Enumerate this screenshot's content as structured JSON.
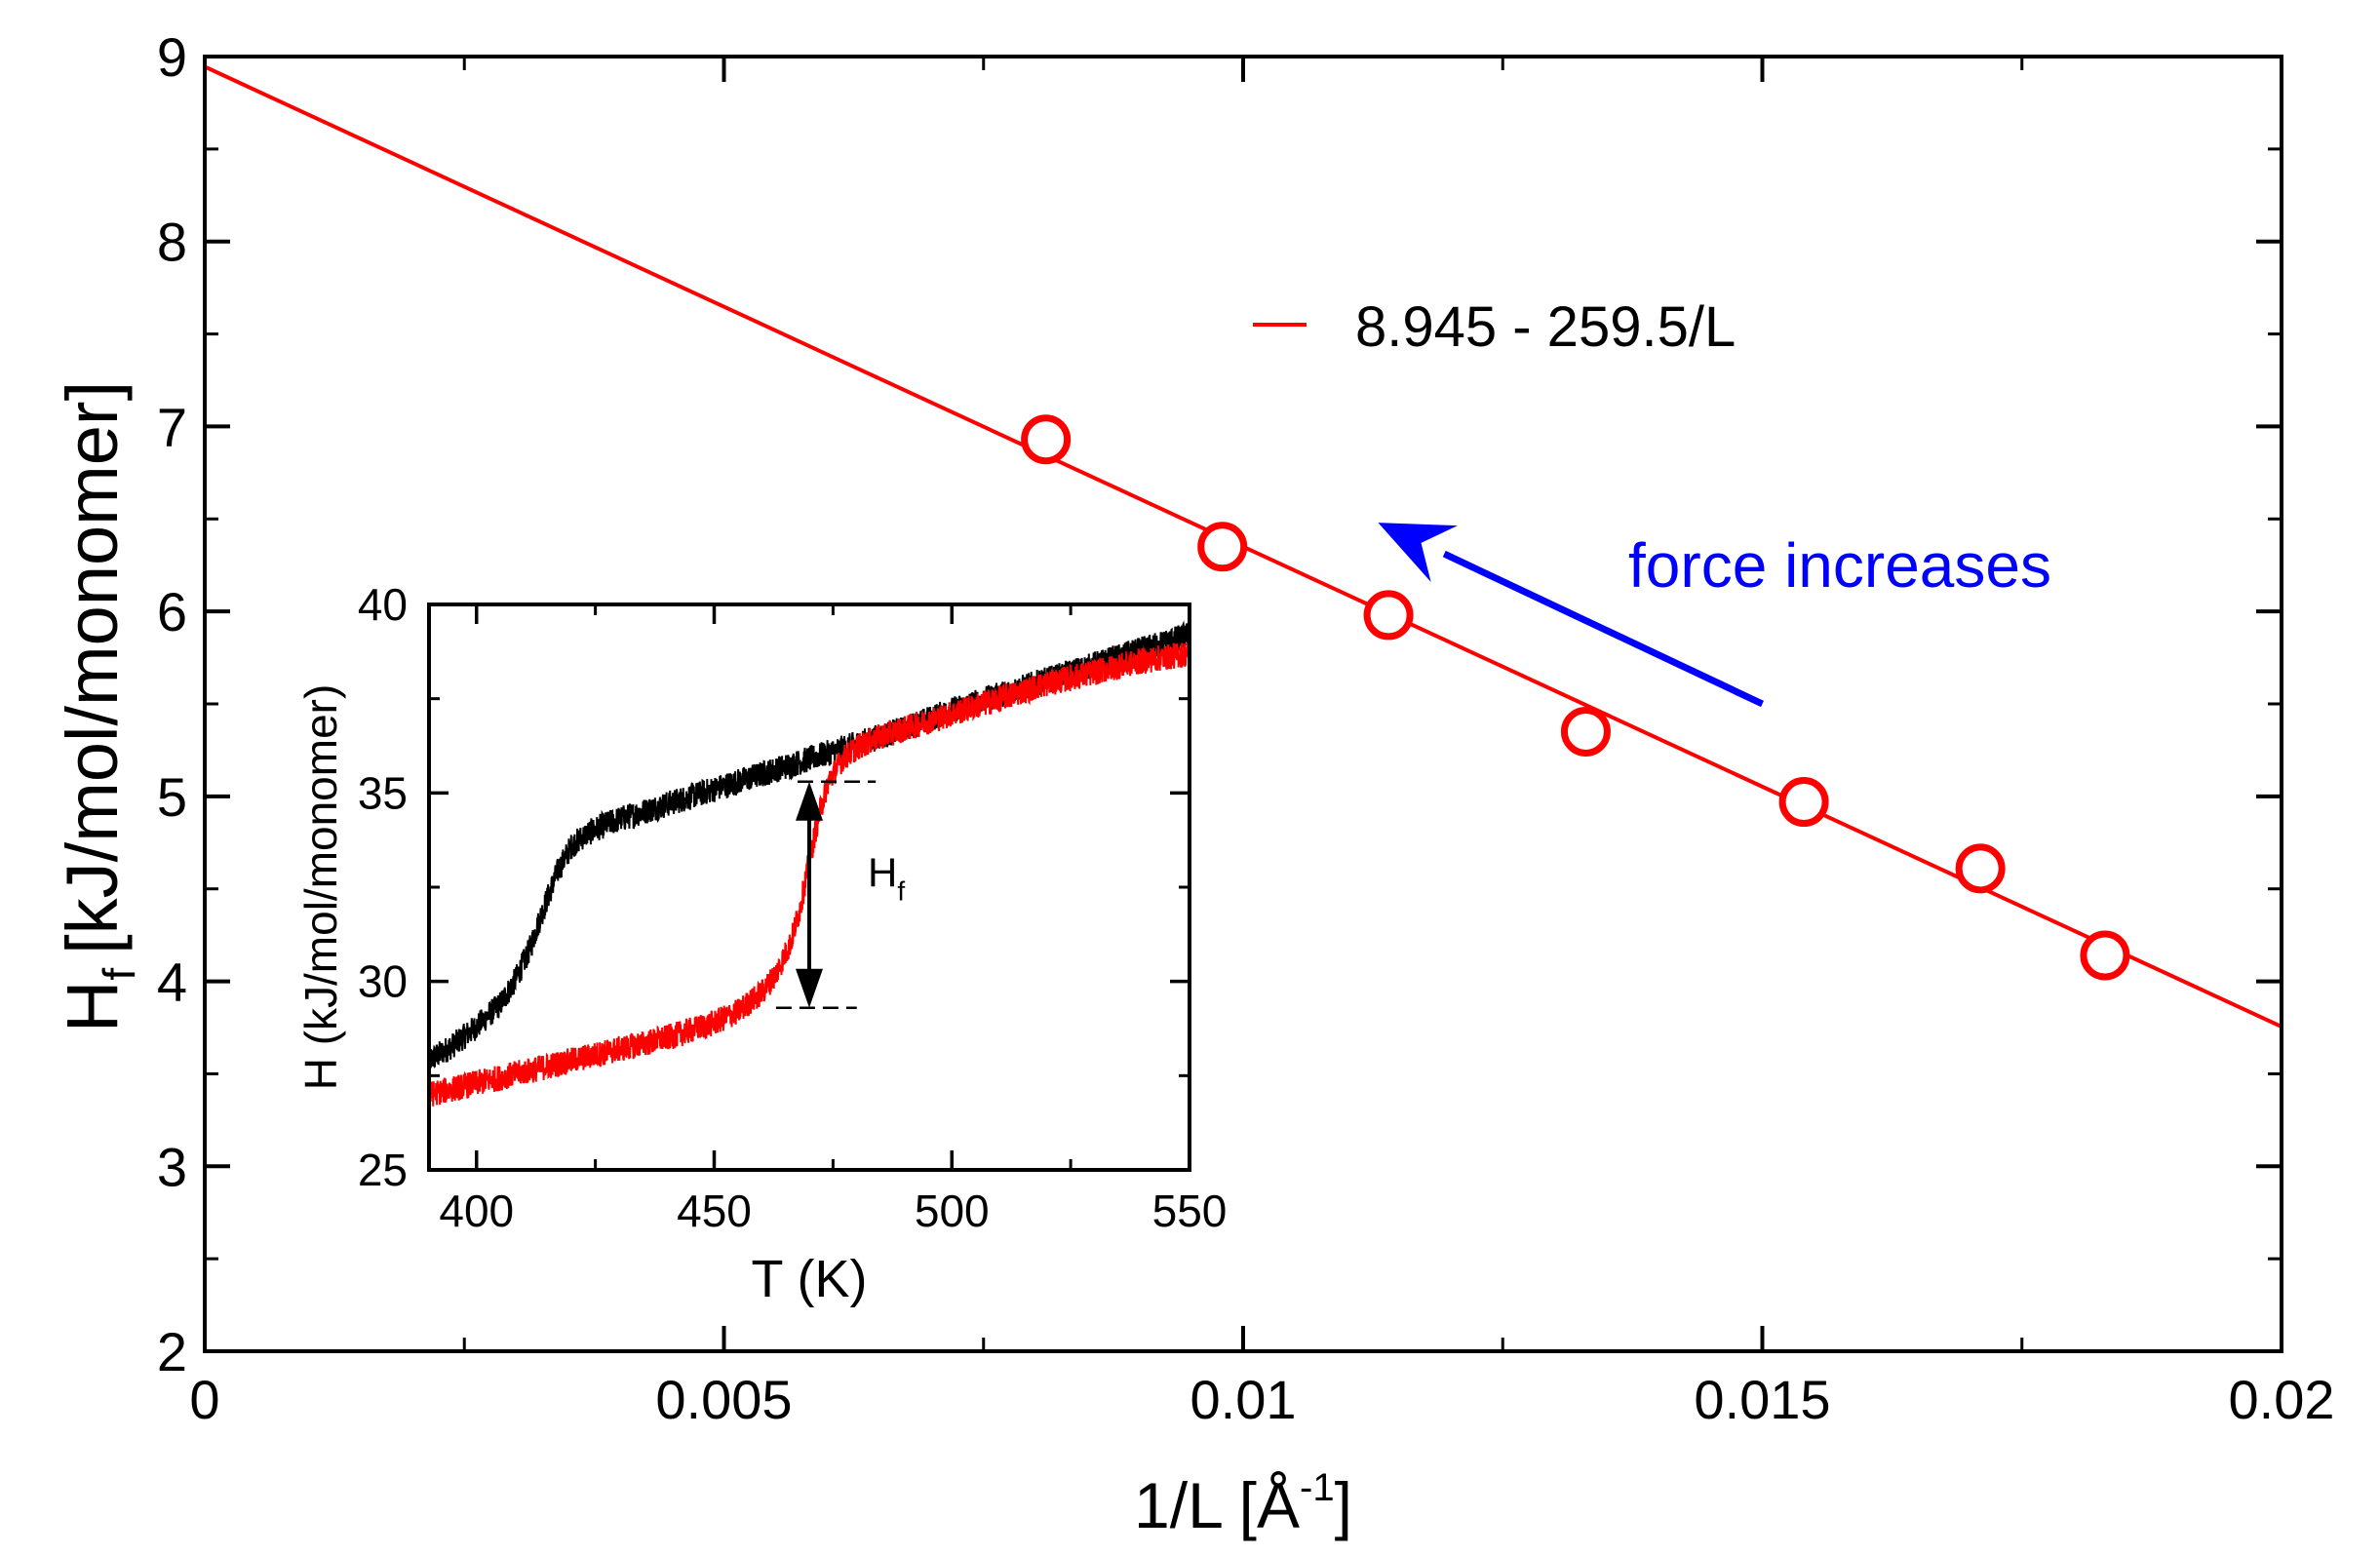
{
  "chart_data": [
    {
      "type": "scatter",
      "xlabel": "1/L [Å",
      "xlabel_sup": "-1",
      "xlabel_end": "]",
      "ylabel_main": "H",
      "ylabel_sub": "f",
      "ylabel_rest": "[kJ/mol/monomer]",
      "xlim": [
        0,
        0.02
      ],
      "ylim": [
        2,
        9
      ],
      "x_ticks": [
        0,
        0.005,
        0.01,
        0.015,
        0.02
      ],
      "x_tick_labels": [
        "0",
        "0.005",
        "0.01",
        "0.015",
        "0.02"
      ],
      "y_ticks": [
        2,
        3,
        4,
        5,
        6,
        7,
        8,
        9
      ],
      "y_tick_labels": [
        "2",
        "3",
        "4",
        "5",
        "6",
        "7",
        "8",
        "9"
      ],
      "series": [
        {
          "kind": "markers",
          "color": "#ff0000",
          "x": [
            0.0081,
            0.0098,
            0.0114,
            0.0133,
            0.0154,
            0.0171,
            0.0183
          ],
          "y": [
            6.93,
            6.35,
            5.98,
            5.35,
            4.97,
            4.61,
            4.14
          ]
        },
        {
          "kind": "fit-line",
          "name": "8.945 - 259.5/L",
          "color": "#ff0000",
          "intercept": 8.945,
          "slope": -259.5,
          "x_range": [
            0,
            0.02
          ]
        }
      ],
      "legend": {
        "position": "upper-right",
        "label": "8.945 - 259.5/L"
      },
      "annotation": {
        "text": "force increases",
        "color": "#0000ff",
        "arrow_from": [
          0.015,
          5.5
        ],
        "arrow_to": [
          0.0113,
          6.48
        ]
      }
    },
    {
      "type": "line",
      "role": "inset",
      "xlabel": "T (K)",
      "ylabel": "H (kJ/mol/monomer)",
      "xlim": [
        390,
        550
      ],
      "ylim": [
        25,
        40
      ],
      "x_ticks": [
        400,
        450,
        500,
        550
      ],
      "x_tick_labels": [
        "400",
        "450",
        "500",
        "550"
      ],
      "y_ticks": [
        25,
        30,
        35,
        40
      ],
      "y_tick_labels": [
        "25",
        "30",
        "35",
        "40"
      ],
      "series": [
        {
          "kind": "noisy-line",
          "color": "#000000",
          "x": [
            390,
            395,
            400,
            405,
            408,
            411,
            414,
            417,
            420,
            423,
            426,
            430,
            440,
            450,
            460,
            470,
            480,
            490,
            500,
            510,
            520,
            530,
            540,
            550
          ],
          "y": [
            27.9,
            28.3,
            28.8,
            29.4,
            30.0,
            30.8,
            31.9,
            32.9,
            33.6,
            33.9,
            34.1,
            34.3,
            34.7,
            35.1,
            35.5,
            35.9,
            36.3,
            36.7,
            37.2,
            37.6,
            38.0,
            38.4,
            38.8,
            39.2
          ],
          "noise": 0.35
        },
        {
          "kind": "noisy-line",
          "color": "#ff0000",
          "x": [
            390,
            400,
            410,
            420,
            430,
            440,
            450,
            455,
            460,
            463,
            466,
            468,
            470,
            472,
            474,
            477,
            480,
            485,
            490,
            500,
            510,
            520,
            530,
            540,
            550
          ],
          "y": [
            27.0,
            27.3,
            27.6,
            27.9,
            28.2,
            28.5,
            28.9,
            29.2,
            29.7,
            30.2,
            31.0,
            31.9,
            33.2,
            34.4,
            35.3,
            35.9,
            36.2,
            36.5,
            36.7,
            37.1,
            37.5,
            37.9,
            38.2,
            38.5,
            38.7
          ],
          "noise": 0.35
        }
      ],
      "annotation": {
        "label_main": "H",
        "label_sub": "f",
        "x": 470,
        "y_low": 29.3,
        "y_high": 35.3,
        "dash_from": 463
      }
    }
  ]
}
